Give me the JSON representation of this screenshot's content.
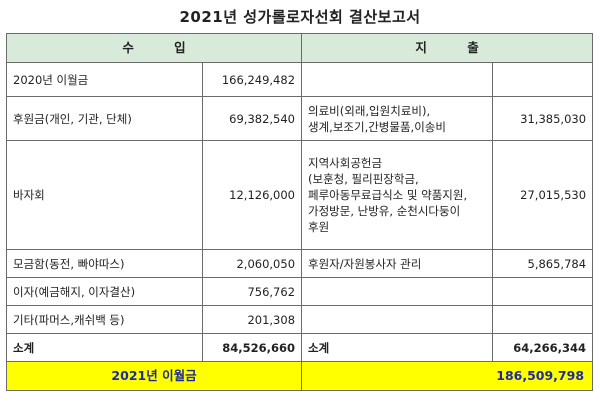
{
  "title": "2021년 성가롤로자선회 결산보고서",
  "headers": {
    "income": "수 입",
    "expense": "지 출"
  },
  "rows": [
    {
      "income_label": "2020년 이월금",
      "income_amount": "166,249,482",
      "expense_lines": [],
      "expense_amount": ""
    },
    {
      "income_label": "후원금(개인, 기관, 단체)",
      "income_amount": "69,382,540",
      "expense_lines": [
        "의료비(외래,입원치료비),",
        "생계,보조기,간병물품,이송비"
      ],
      "expense_amount": "31,385,030"
    },
    {
      "income_label": "바자회",
      "income_amount": "12,126,000",
      "expense_lines": [
        "지역사회공헌금",
        "(보훈청, 필리핀장학금,",
        "페루아동무료급식소 및 약품지원,",
        "가정방문, 난방유, 순천시다둥이",
        "후원"
      ],
      "expense_amount": "27,015,530"
    },
    {
      "income_label": "모금함(동전, 빠야따스)",
      "income_amount": "2,060,050",
      "expense_lines": [
        "후원자/자원봉사자 관리"
      ],
      "expense_amount": "5,865,784"
    },
    {
      "income_label": "이자(예금해지, 이자결산)",
      "income_amount": "756,762",
      "expense_lines": [],
      "expense_amount": ""
    },
    {
      "income_label": "기타(파머스,캐쉬백 등)",
      "income_amount": "201,308",
      "expense_lines": [],
      "expense_amount": ""
    }
  ],
  "subtotal": {
    "income_label": "소계",
    "income_amount": "84,526,660",
    "expense_label": "소계",
    "expense_amount": "64,266,344"
  },
  "carryover": {
    "label": "2021년 이월금",
    "amount": "186,509,798"
  }
}
